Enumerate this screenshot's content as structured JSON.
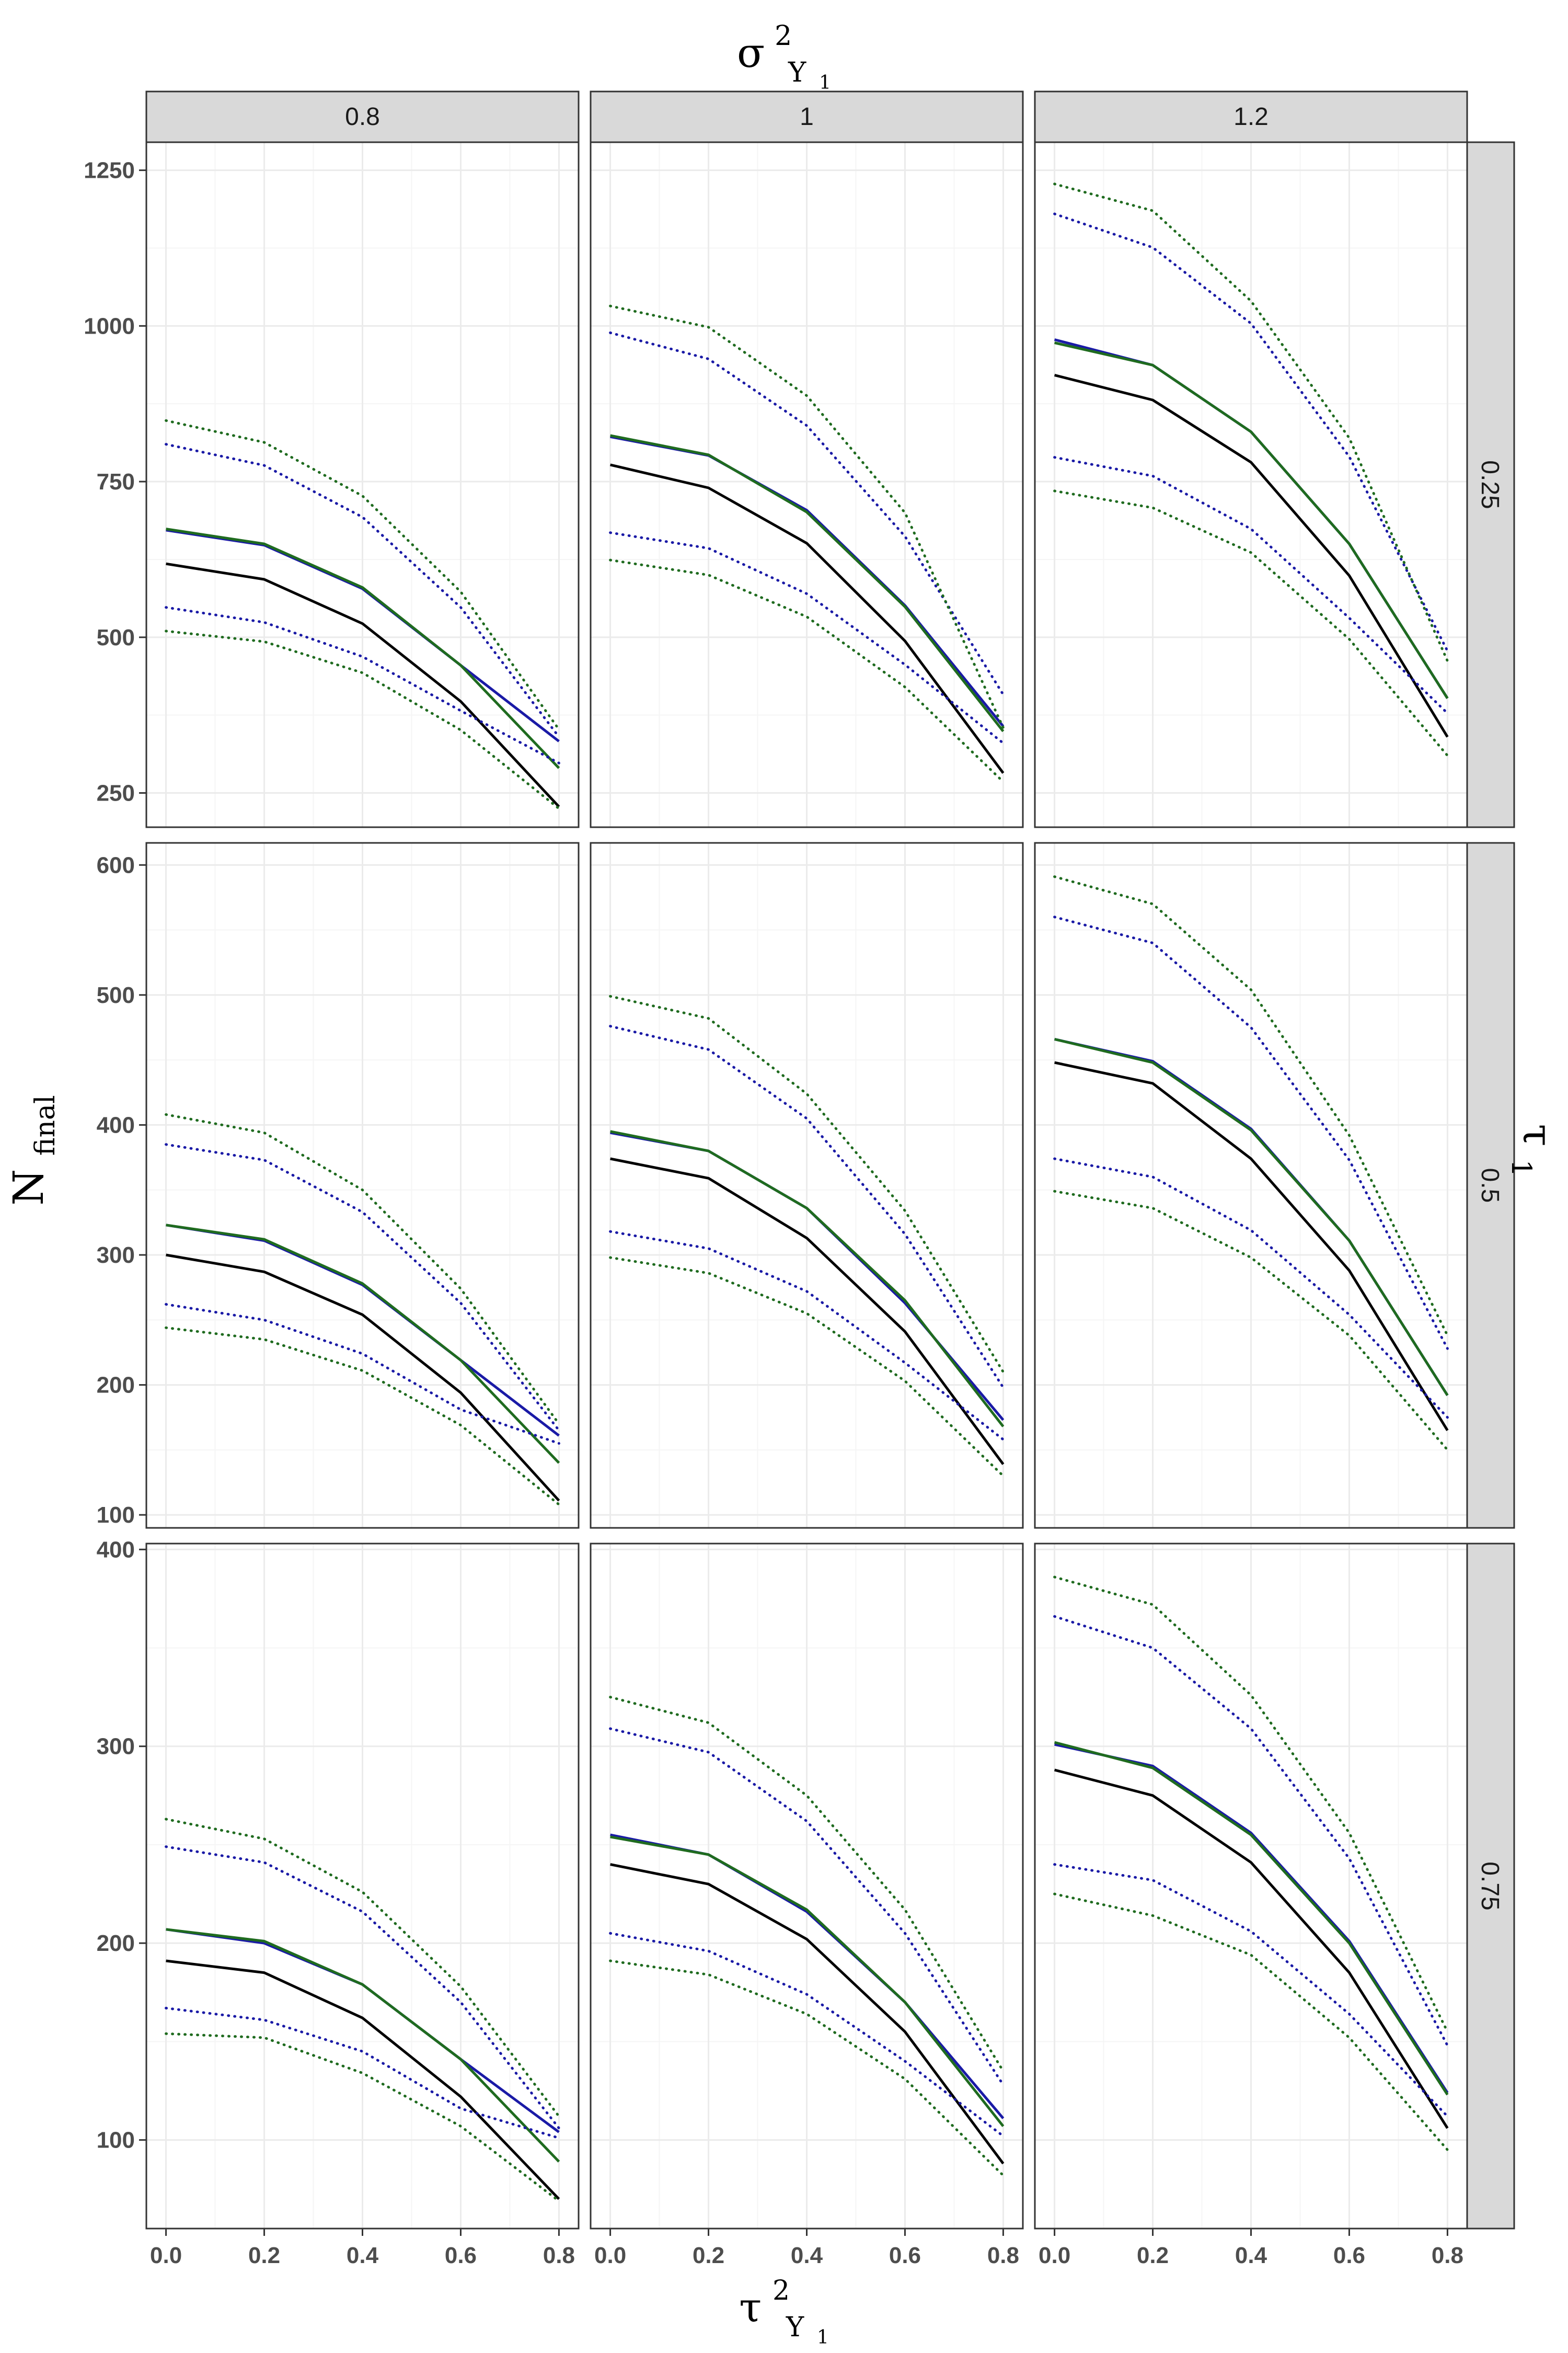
{
  "figure": {
    "column_title": "σ",
    "column_title_sup": "2",
    "column_title_sub": "Y",
    "column_title_subsub": "1",
    "row_title": "τ",
    "row_title_sub": "1",
    "xlabel": "τ",
    "xlabel_sup": "2",
    "xlabel_sub": "Y",
    "xlabel_subsub": "1",
    "ylabel": "N",
    "ylabel_sub": "final"
  },
  "colors": {
    "black": "#000000",
    "blue": "#1a1aa6",
    "green": "#1f6b1f",
    "strip": "#d9d9d9",
    "grid_major": "#ebebeb",
    "grid_minor": "#f5f5f5"
  },
  "chart_data": {
    "type": "line",
    "layout": "facet_grid",
    "col_facets": [
      "0.8",
      "1",
      "1.2"
    ],
    "row_facets": [
      "0.25",
      "0.5",
      "0.75"
    ],
    "x": [
      0,
      0.2,
      0.4,
      0.6,
      0.8
    ],
    "x_ticks": [
      "0.0",
      "0.2",
      "0.4",
      "0.6",
      "0.8"
    ],
    "xlim": [
      -0.04,
      0.84
    ],
    "grid": true,
    "rows": [
      {
        "ylim": [
          195,
          1295
        ],
        "y_ticks": [
          250,
          500,
          750,
          1000,
          1250
        ],
        "panels": [
          {
            "series": [
              {
                "color": "black",
                "style": "solid",
                "values": [
                  618,
                  593,
                  522,
                  397,
                  228
                ]
              },
              {
                "color": "blue",
                "style": "solid",
                "values": [
                  672,
                  648,
                  578,
                  455,
                  333
                ]
              },
              {
                "color": "green",
                "style": "solid",
                "values": [
                  674,
                  650,
                  580,
                  455,
                  290
                ]
              },
              {
                "color": "blue",
                "style": "dotted",
                "values": [
                  810,
                  776,
                  693,
                  548,
                  340
                ]
              },
              {
                "color": "green",
                "style": "dotted",
                "values": [
                  848,
                  813,
                  727,
                  573,
                  352
                ]
              },
              {
                "color": "blue",
                "style": "dotted",
                "values": [
                  548,
                  524,
                  469,
                  382,
                  298
                ]
              },
              {
                "color": "green",
                "style": "dotted",
                "values": [
                  510,
                  493,
                  443,
                  351,
                  225
                ]
              }
            ]
          },
          {
            "series": [
              {
                "color": "black",
                "style": "solid",
                "values": [
                  777,
                  740,
                  651,
                  494,
                  282
                ]
              },
              {
                "color": "blue",
                "style": "solid",
                "values": [
                  822,
                  792,
                  704,
                  551,
                  357
                ]
              },
              {
                "color": "green",
                "style": "solid",
                "values": [
                  824,
                  793,
                  701,
                  549,
                  349
                ]
              },
              {
                "color": "blue",
                "style": "dotted",
                "values": [
                  989,
                  947,
                  840,
                  662,
                  408
                ]
              },
              {
                "color": "green",
                "style": "dotted",
                "values": [
                  1032,
                  998,
                  888,
                  700,
                  355
                ]
              },
              {
                "color": "blue",
                "style": "dotted",
                "values": [
                  668,
                  643,
                  570,
                  456,
                  330
                ]
              },
              {
                "color": "green",
                "style": "dotted",
                "values": [
                  624,
                  600,
                  533,
                  420,
                  268
                ]
              }
            ]
          },
          {
            "series": [
              {
                "color": "black",
                "style": "solid",
                "values": [
                  921,
                  881,
                  781,
                  599,
                  340
                ]
              },
              {
                "color": "blue",
                "style": "solid",
                "values": [
                  978,
                  937,
                  830,
                  650,
                  402
                ]
              },
              {
                "color": "green",
                "style": "solid",
                "values": [
                  973,
                  937,
                  830,
                  650,
                  402
                ]
              },
              {
                "color": "blue",
                "style": "dotted",
                "values": [
                  1180,
                  1126,
                  1004,
                  790,
                  478
                ]
              },
              {
                "color": "green",
                "style": "dotted",
                "values": [
                  1228,
                  1185,
                  1040,
                  820,
                  462
                ]
              },
              {
                "color": "blue",
                "style": "dotted",
                "values": [
                  789,
                  759,
                  674,
                  531,
                  378
                ]
              },
              {
                "color": "green",
                "style": "dotted",
                "values": [
                  735,
                  708,
                  636,
                  497,
                  310
                ]
              }
            ]
          }
        ]
      },
      {
        "ylim": [
          90,
          617
        ],
        "y_ticks": [
          100,
          200,
          300,
          400,
          500,
          600
        ],
        "panels": [
          {
            "series": [
              {
                "color": "black",
                "style": "solid",
                "values": [
                  300,
                  287,
                  254,
                  194,
                  111
                ]
              },
              {
                "color": "blue",
                "style": "solid",
                "values": [
                  323,
                  311,
                  277,
                  219,
                  161
                ]
              },
              {
                "color": "green",
                "style": "solid",
                "values": [
                  323,
                  312,
                  278,
                  219,
                  140
                ]
              },
              {
                "color": "blue",
                "style": "dotted",
                "values": [
                  385,
                  373,
                  333,
                  263,
                  165
                ]
              },
              {
                "color": "green",
                "style": "dotted",
                "values": [
                  408,
                  394,
                  350,
                  274,
                  170
                ]
              },
              {
                "color": "blue",
                "style": "dotted",
                "values": [
                  262,
                  250,
                  224,
                  181,
                  155
                ]
              },
              {
                "color": "green",
                "style": "dotted",
                "values": [
                  244,
                  235,
                  211,
                  169,
                  108
                ]
              }
            ]
          },
          {
            "series": [
              {
                "color": "black",
                "style": "solid",
                "values": [
                  374,
                  359,
                  313,
                  241,
                  139
                ]
              },
              {
                "color": "blue",
                "style": "solid",
                "values": [
                  394,
                  380,
                  336,
                  263,
                  173
                ]
              },
              {
                "color": "green",
                "style": "solid",
                "values": [
                  395,
                  380,
                  336,
                  265,
                  168
                ]
              },
              {
                "color": "blue",
                "style": "dotted",
                "values": [
                  476,
                  458,
                  405,
                  316,
                  198
                ]
              },
              {
                "color": "green",
                "style": "dotted",
                "values": [
                  499,
                  482,
                  424,
                  334,
                  210
                ]
              },
              {
                "color": "blue",
                "style": "dotted",
                "values": [
                  318,
                  305,
                  272,
                  217,
                  158
                ]
              },
              {
                "color": "green",
                "style": "dotted",
                "values": [
                  298,
                  286,
                  255,
                  203,
                  130
                ]
              }
            ]
          },
          {
            "series": [
              {
                "color": "black",
                "style": "solid",
                "values": [
                  448,
                  432,
                  374,
                  288,
                  165
                ]
              },
              {
                "color": "blue",
                "style": "solid",
                "values": [
                  466,
                  449,
                  397,
                  311,
                  192
                ]
              },
              {
                "color": "green",
                "style": "solid",
                "values": [
                  466,
                  448,
                  396,
                  311,
                  192
                ]
              },
              {
                "color": "blue",
                "style": "dotted",
                "values": [
                  560,
                  540,
                  475,
                  373,
                  228
                ]
              },
              {
                "color": "green",
                "style": "dotted",
                "values": [
                  591,
                  570,
                  504,
                  392,
                  238
                ]
              },
              {
                "color": "blue",
                "style": "dotted",
                "values": [
                  374,
                  360,
                  319,
                  254,
                  175
                ]
              },
              {
                "color": "green",
                "style": "dotted",
                "values": [
                  349,
                  336,
                  298,
                  238,
                  150
                ]
              }
            ]
          }
        ]
      },
      {
        "ylim": [
          55,
          403
        ],
        "y_ticks": [
          100,
          200,
          300,
          400
        ],
        "panels": [
          {
            "series": [
              {
                "color": "black",
                "style": "solid",
                "values": [
                  191,
                  185,
                  162,
                  122,
                  70
                ]
              },
              {
                "color": "blue",
                "style": "solid",
                "values": [
                  207,
                  200,
                  179,
                  141,
                  104
                ]
              },
              {
                "color": "green",
                "style": "solid",
                "values": [
                  207,
                  201,
                  179,
                  141,
                  89
                ]
              },
              {
                "color": "blue",
                "style": "dotted",
                "values": [
                  249,
                  241,
                  216,
                  170,
                  106
                ]
              },
              {
                "color": "green",
                "style": "dotted",
                "values": [
                  263,
                  253,
                  226,
                  178,
                  112
                ]
              },
              {
                "color": "blue",
                "style": "dotted",
                "values": [
                  167,
                  161,
                  145,
                  116,
                  101
                ]
              },
              {
                "color": "green",
                "style": "dotted",
                "values": [
                  154,
                  152,
                  134,
                  107,
                  69
                ]
              }
            ]
          },
          {
            "series": [
              {
                "color": "black",
                "style": "solid",
                "values": [
                  240,
                  230,
                  202,
                  155,
                  88
                ]
              },
              {
                "color": "blue",
                "style": "solid",
                "values": [
                  255,
                  245,
                  216,
                  170,
                  111
                ]
              },
              {
                "color": "green",
                "style": "solid",
                "values": [
                  254,
                  245,
                  217,
                  170,
                  107
                ]
              },
              {
                "color": "blue",
                "style": "dotted",
                "values": [
                  309,
                  297,
                  262,
                  205,
                  128
                ]
              },
              {
                "color": "green",
                "style": "dotted",
                "values": [
                  325,
                  312,
                  275,
                  217,
                  135
                ]
              },
              {
                "color": "blue",
                "style": "dotted",
                "values": [
                  205,
                  196,
                  174,
                  140,
                  102
                ]
              },
              {
                "color": "green",
                "style": "dotted",
                "values": [
                  191,
                  184,
                  164,
                  131,
                  82
                ]
              }
            ]
          },
          {
            "series": [
              {
                "color": "black",
                "style": "solid",
                "values": [
                  288,
                  275,
                  241,
                  185,
                  106
                ]
              },
              {
                "color": "blue",
                "style": "solid",
                "values": [
                  301,
                  290,
                  256,
                  201,
                  124
                ]
              },
              {
                "color": "green",
                "style": "solid",
                "values": [
                  302,
                  289,
                  255,
                  200,
                  123
                ]
              },
              {
                "color": "blue",
                "style": "dotted",
                "values": [
                  366,
                  350,
                  309,
                  243,
                  148
                ]
              },
              {
                "color": "green",
                "style": "dotted",
                "values": [
                  386,
                  372,
                  326,
                  256,
                  155
                ]
              },
              {
                "color": "blue",
                "style": "dotted",
                "values": [
                  240,
                  232,
                  206,
                  164,
                  112
                ]
              },
              {
                "color": "green",
                "style": "dotted",
                "values": [
                  225,
                  214,
                  194,
                  152,
                  95
                ]
              }
            ]
          }
        ]
      }
    ]
  }
}
